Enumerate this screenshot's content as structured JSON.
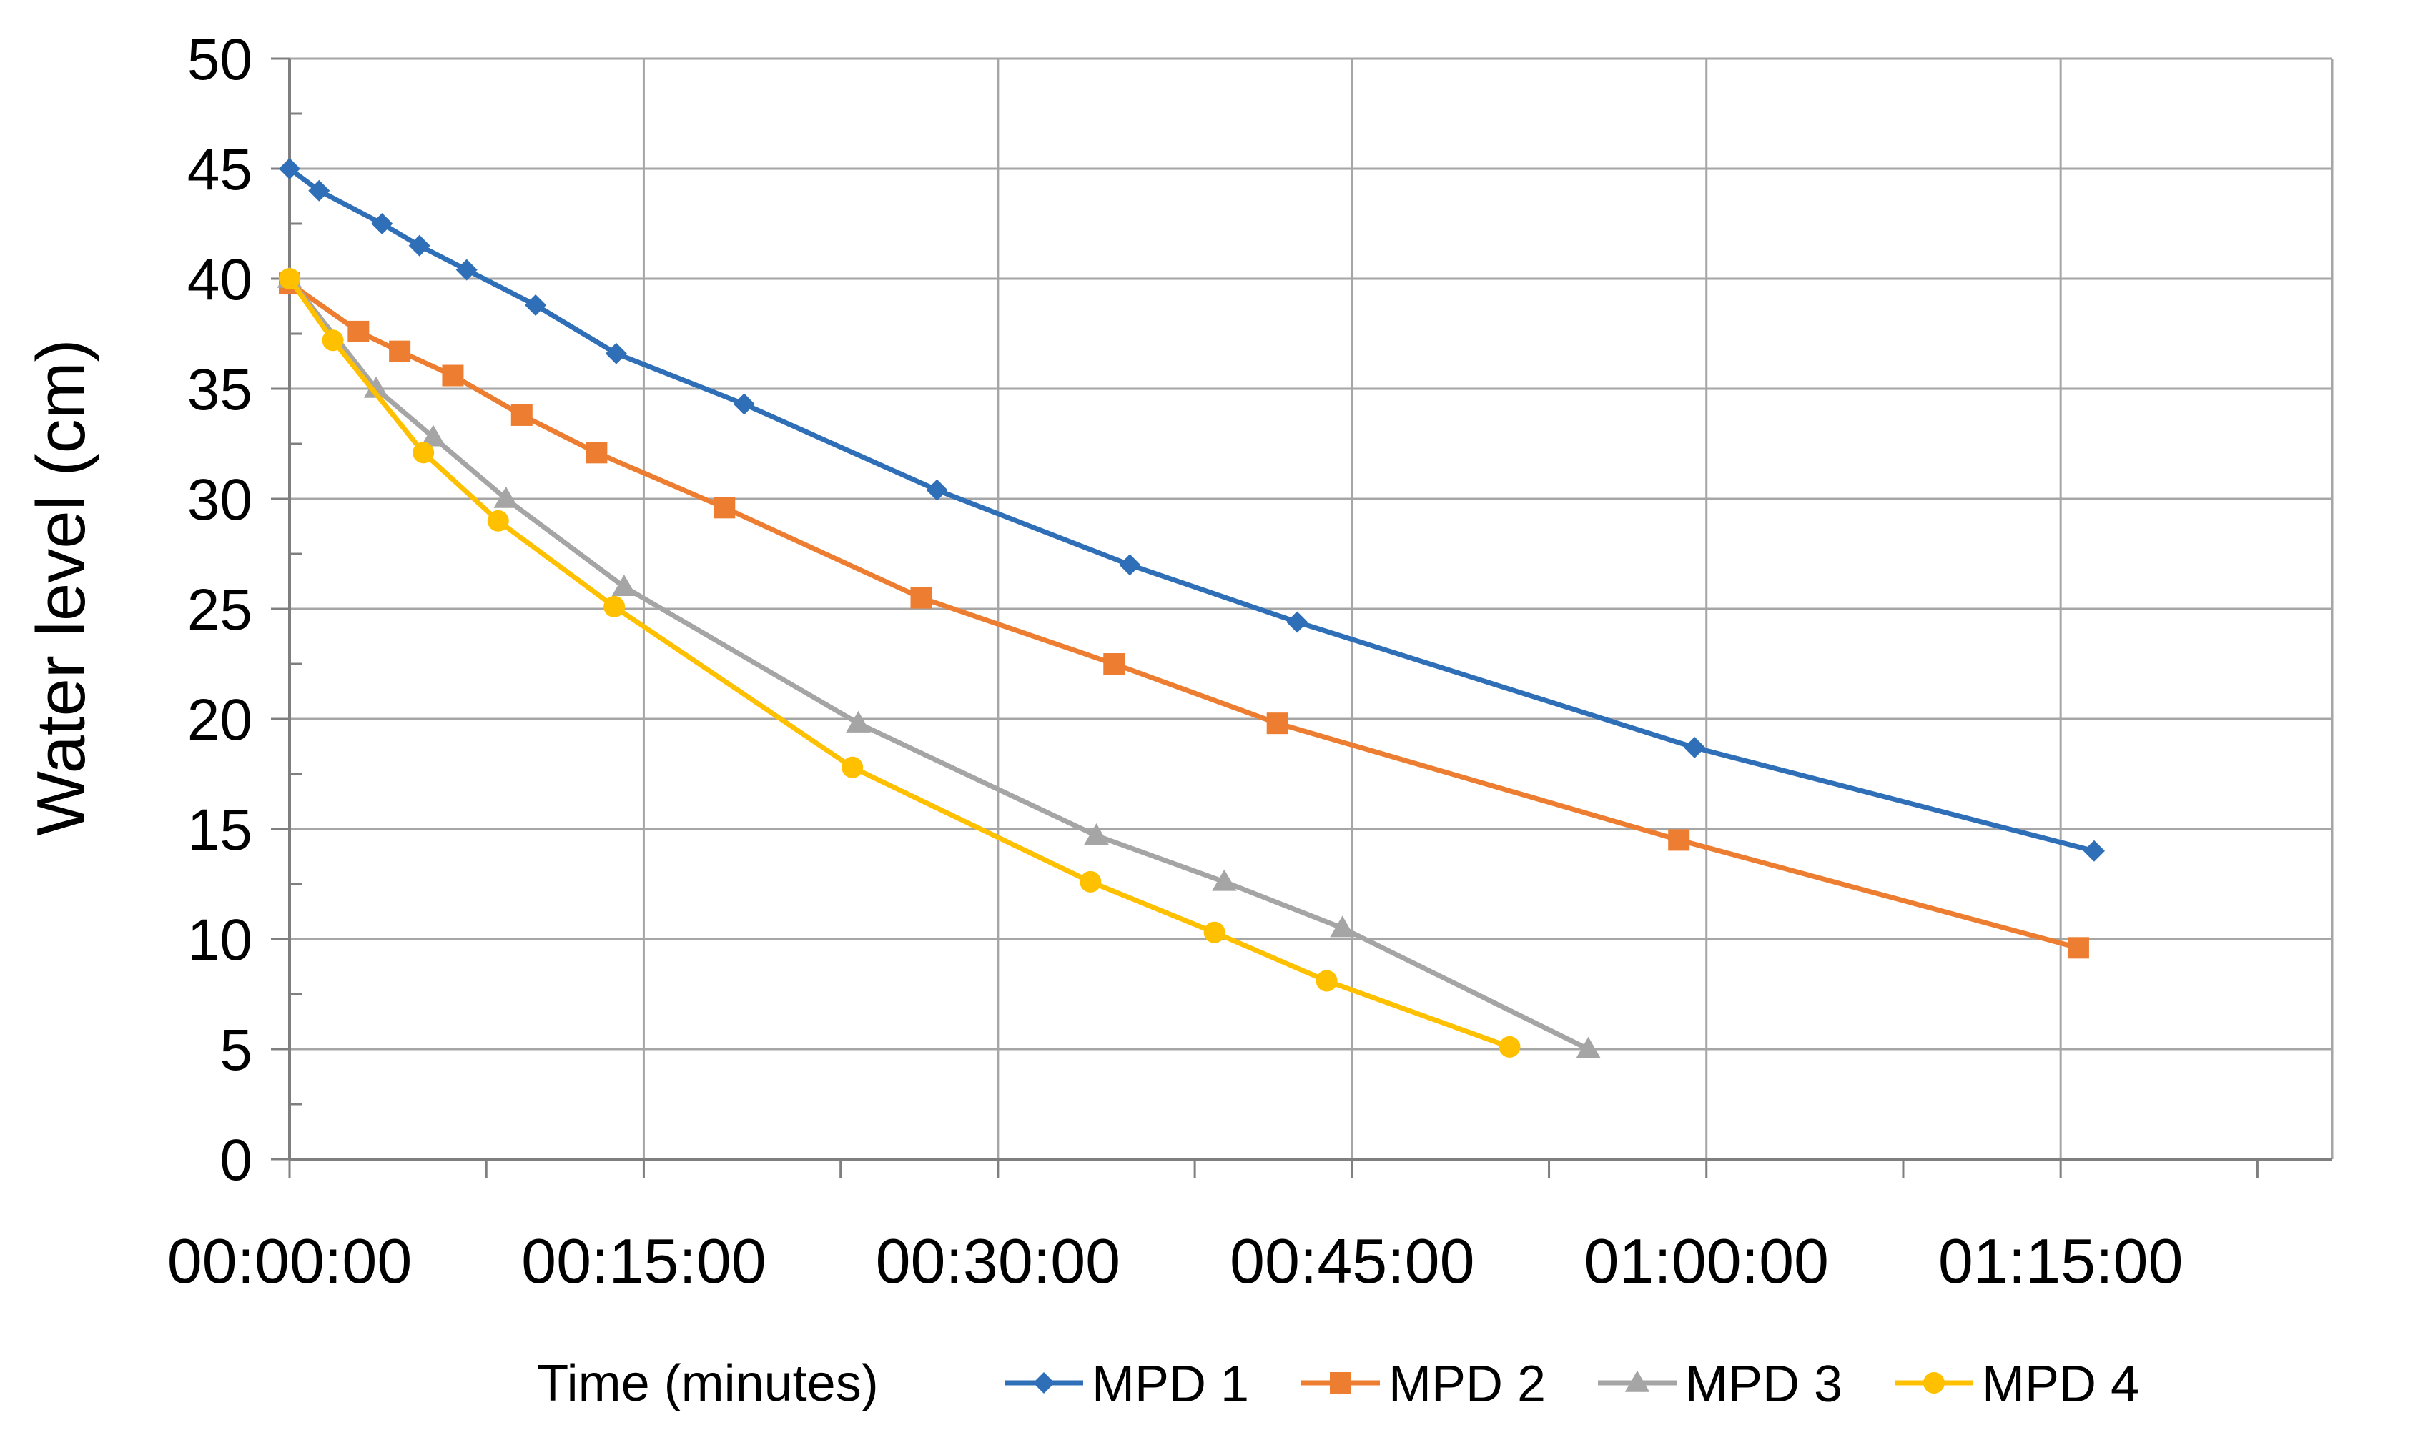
{
  "chart_data": {
    "type": "line",
    "title": "",
    "xlabel": "Time (minutes)",
    "ylabel": "Water level (cm)",
    "x_unit": "time (hh:mm:ss)",
    "xlim": [
      "00:00:00",
      "01:26:30"
    ],
    "ylim": [
      0,
      50
    ],
    "x_ticks": [
      "00:00:00",
      "00:15:00",
      "00:30:00",
      "00:45:00",
      "01:00:00",
      "01:15:00"
    ],
    "y_ticks": [
      0,
      5,
      10,
      15,
      20,
      25,
      30,
      35,
      40,
      45,
      50
    ],
    "grid": true,
    "legend": "bottom",
    "series": [
      {
        "name": "MPD 1",
        "color": "#2E6FB7",
        "marker": "diamond",
        "points": [
          {
            "x": "00:00:00",
            "y": 45.0
          },
          {
            "x": "00:01:15",
            "y": 44.0
          },
          {
            "x": "00:03:55",
            "y": 42.5
          },
          {
            "x": "00:05:30",
            "y": 41.5
          },
          {
            "x": "00:07:30",
            "y": 40.4
          },
          {
            "x": "00:10:25",
            "y": 38.8
          },
          {
            "x": "00:13:50",
            "y": 36.6
          },
          {
            "x": "00:19:15",
            "y": 34.3
          },
          {
            "x": "00:27:25",
            "y": 30.4
          },
          {
            "x": "00:35:35",
            "y": 27.0
          },
          {
            "x": "00:42:40",
            "y": 24.4
          },
          {
            "x": "00:59:30",
            "y": 18.7
          },
          {
            "x": "01:16:25",
            "y": 14.0
          }
        ]
      },
      {
        "name": "MPD 2",
        "color": "#ED7D31",
        "marker": "square",
        "points": [
          {
            "x": "00:00:00",
            "y": 39.8
          },
          {
            "x": "00:02:55",
            "y": 37.6
          },
          {
            "x": "00:04:40",
            "y": 36.7
          },
          {
            "x": "00:06:55",
            "y": 35.6
          },
          {
            "x": "00:09:50",
            "y": 33.8
          },
          {
            "x": "00:13:00",
            "y": 32.1
          },
          {
            "x": "00:18:25",
            "y": 29.6
          },
          {
            "x": "00:26:45",
            "y": 25.5
          },
          {
            "x": "00:34:55",
            "y": 22.5
          },
          {
            "x": "00:41:50",
            "y": 19.8
          },
          {
            "x": "00:58:50",
            "y": 14.5
          },
          {
            "x": "01:15:45",
            "y": 9.6
          }
        ]
      },
      {
        "name": "MPD 3",
        "color": "#A5A5A5",
        "marker": "triangle",
        "points": [
          {
            "x": "00:00:00",
            "y": 40.0
          },
          {
            "x": "00:03:40",
            "y": 35.0
          },
          {
            "x": "00:06:05",
            "y": 32.8
          },
          {
            "x": "00:09:10",
            "y": 30.0
          },
          {
            "x": "00:14:10",
            "y": 26.0
          },
          {
            "x": "00:24:05",
            "y": 19.8
          },
          {
            "x": "00:34:10",
            "y": 14.7
          },
          {
            "x": "00:39:35",
            "y": 12.6
          },
          {
            "x": "00:44:35",
            "y": 10.5
          },
          {
            "x": "00:55:00",
            "y": 5.0
          }
        ]
      },
      {
        "name": "MPD 4",
        "color": "#FFC000",
        "marker": "circle",
        "points": [
          {
            "x": "00:00:00",
            "y": 40.0
          },
          {
            "x": "00:01:50",
            "y": 37.2
          },
          {
            "x": "00:05:40",
            "y": 32.1
          },
          {
            "x": "00:08:50",
            "y": 29.0
          },
          {
            "x": "00:13:45",
            "y": 25.1
          },
          {
            "x": "00:23:50",
            "y": 17.8
          },
          {
            "x": "00:33:55",
            "y": 12.6
          },
          {
            "x": "00:39:10",
            "y": 10.3
          },
          {
            "x": "00:43:55",
            "y": 8.1
          },
          {
            "x": "00:51:40",
            "y": 5.1
          }
        ]
      }
    ]
  }
}
